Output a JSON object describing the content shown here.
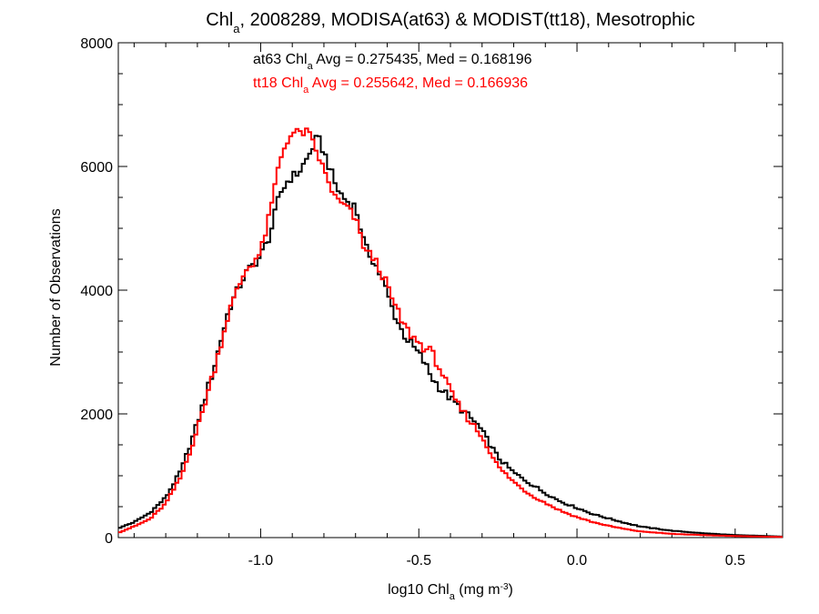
{
  "chart_data": {
    "type": "line",
    "title": {
      "prefix": "Chl",
      "sub": "a",
      "suffix": ", 2008289, MODISA(at63) & MODIST(tt18), Mesotrophic"
    },
    "xlabel": {
      "prefix": "log10 Chl",
      "sub": "a",
      "mid": " (mg m",
      "sup": "-3",
      "suffix": ")"
    },
    "ylabel": "Number of Observations",
    "xlim": [
      -1.45,
      0.65
    ],
    "ylim": [
      0,
      8000
    ],
    "x_ticks": [
      -1.0,
      -0.5,
      0.0,
      0.5
    ],
    "x_tick_labels": [
      "-1.0",
      "-0.5",
      "0.0",
      "0.5"
    ],
    "y_ticks": [
      0,
      2000,
      4000,
      6000,
      8000
    ],
    "y_tick_labels": [
      "0",
      "2000",
      "4000",
      "6000",
      "8000"
    ],
    "step": "histogram",
    "series": [
      {
        "name": "at63",
        "color": "#000000",
        "annotation": {
          "prefix": "at63 Chl",
          "sub": "a",
          "suffix": " Avg = 0.275435, Med = 0.168196"
        },
        "x": [
          -1.45,
          -1.4,
          -1.35,
          -1.3,
          -1.25,
          -1.2,
          -1.15,
          -1.1,
          -1.05,
          -1.0,
          -0.97,
          -0.94,
          -0.91,
          -0.88,
          -0.85,
          -0.82,
          -0.79,
          -0.76,
          -0.73,
          -0.7,
          -0.67,
          -0.64,
          -0.61,
          -0.58,
          -0.55,
          -0.52,
          -0.49,
          -0.46,
          -0.43,
          -0.4,
          -0.37,
          -0.34,
          -0.31,
          -0.28,
          -0.25,
          -0.2,
          -0.15,
          -0.1,
          -0.05,
          0.0,
          0.05,
          0.1,
          0.15,
          0.2,
          0.3,
          0.4,
          0.5,
          0.6,
          0.65
        ],
        "y": [
          150,
          250,
          400,
          650,
          1100,
          1850,
          2700,
          3700,
          4250,
          4550,
          4900,
          5550,
          5800,
          5900,
          6150,
          6480,
          6100,
          5650,
          5450,
          5350,
          4700,
          4450,
          4100,
          3650,
          3300,
          3100,
          2900,
          2600,
          2400,
          2250,
          2100,
          1950,
          1800,
          1550,
          1300,
          1050,
          880,
          720,
          580,
          480,
          380,
          310,
          240,
          180,
          110,
          70,
          40,
          25,
          15
        ]
      },
      {
        "name": "tt18",
        "color": "#ff0000",
        "annotation": {
          "prefix": "tt18 Chl",
          "sub": "a",
          "suffix": " Avg = 0.255642, Med = 0.166936"
        },
        "x": [
          -1.45,
          -1.4,
          -1.35,
          -1.3,
          -1.25,
          -1.2,
          -1.15,
          -1.1,
          -1.05,
          -1.0,
          -0.97,
          -0.94,
          -0.91,
          -0.88,
          -0.85,
          -0.82,
          -0.79,
          -0.76,
          -0.73,
          -0.7,
          -0.67,
          -0.64,
          -0.61,
          -0.58,
          -0.55,
          -0.52,
          -0.49,
          -0.46,
          -0.43,
          -0.4,
          -0.37,
          -0.34,
          -0.31,
          -0.28,
          -0.25,
          -0.2,
          -0.15,
          -0.1,
          -0.05,
          0.0,
          0.05,
          0.1,
          0.15,
          0.2,
          0.3,
          0.4,
          0.5,
          0.6,
          0.65
        ],
        "y": [
          80,
          180,
          300,
          550,
          1000,
          1750,
          2650,
          3650,
          4300,
          4600,
          5250,
          6100,
          6500,
          6550,
          6550,
          6200,
          5800,
          5450,
          5350,
          5150,
          4650,
          4500,
          4200,
          3800,
          3450,
          3250,
          3100,
          3000,
          2700,
          2350,
          2100,
          1900,
          1700,
          1450,
          1150,
          900,
          700,
          560,
          430,
          330,
          250,
          190,
          140,
          100,
          60,
          40,
          25,
          15,
          10
        ]
      }
    ]
  }
}
